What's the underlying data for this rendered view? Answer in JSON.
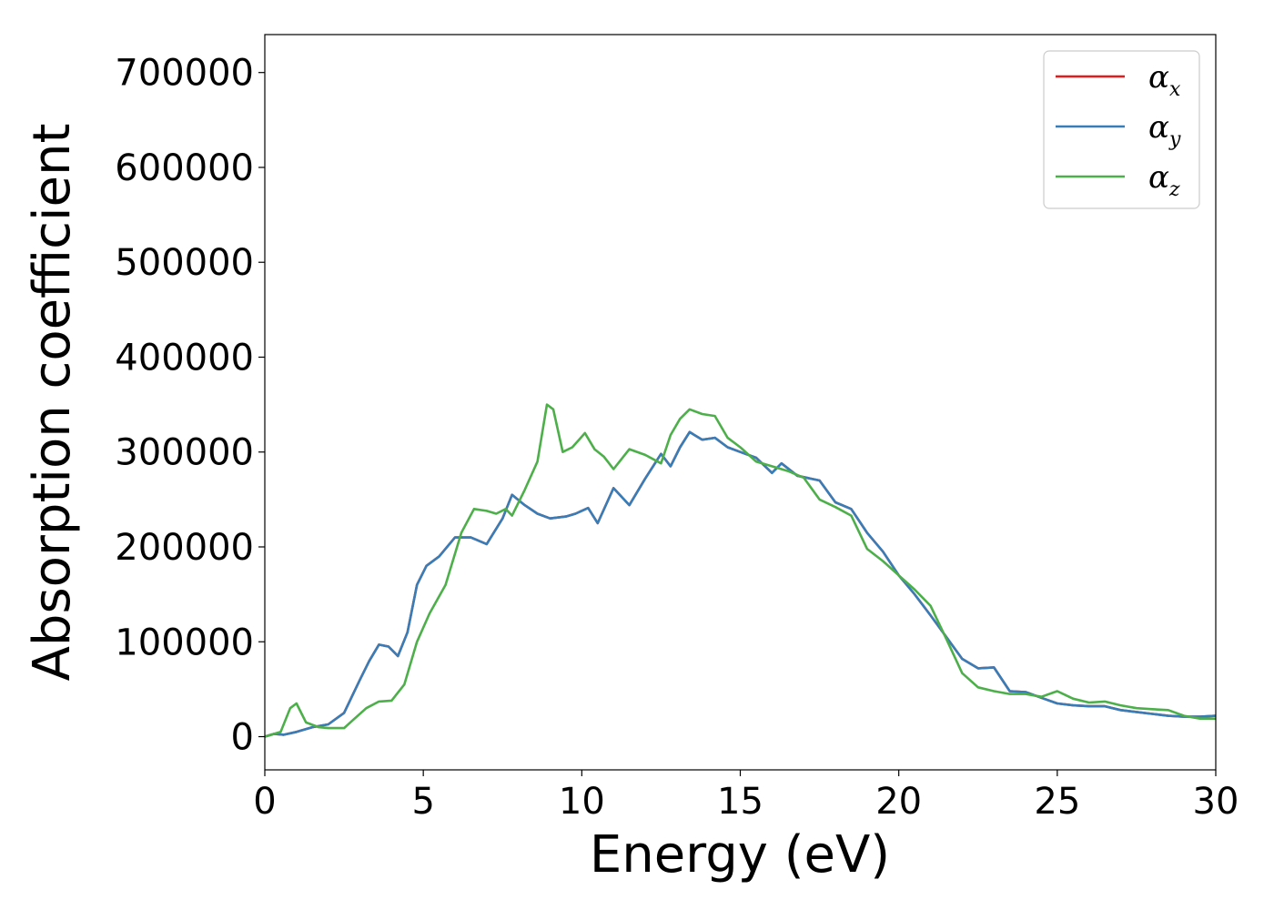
{
  "chart_data": {
    "type": "line",
    "xlabel": "Energy (eV)",
    "ylabel": "Absorption coefficient",
    "xlim": [
      0,
      30
    ],
    "ylim": [
      -35000,
      740000
    ],
    "xticks": [
      0,
      5,
      10,
      15,
      20,
      25,
      30
    ],
    "xtick_labels": [
      "0",
      "5",
      "10",
      "15",
      "20",
      "25",
      "30"
    ],
    "yticks": [
      0,
      100000,
      200000,
      300000,
      400000,
      500000,
      600000,
      700000
    ],
    "ytick_labels": [
      "0",
      "100000",
      "200000",
      "300000",
      "400000",
      "500000",
      "600000",
      "700000"
    ],
    "grid": false,
    "legend_position": "top-right",
    "series": [
      {
        "name": "αx",
        "symbol": "α",
        "subscript": "x",
        "color": "#e41a1c",
        "x": [
          0,
          0.3,
          0.6,
          1,
          1.5,
          2,
          2.5,
          3,
          3.3,
          3.6,
          3.9,
          4.2,
          4.5,
          4.8,
          5.1,
          5.5,
          6,
          6.5,
          7,
          7.5,
          7.8,
          8.2,
          8.6,
          9,
          9.5,
          9.8,
          10.2,
          10.5,
          11,
          11.5,
          12,
          12.5,
          12.8,
          13.1,
          13.4,
          13.8,
          14.2,
          14.6,
          15,
          15.5,
          16,
          16.3,
          16.8,
          17.5,
          18,
          18.5,
          19,
          19.5,
          20,
          20.5,
          21,
          21.5,
          22,
          22.5,
          23,
          23.5,
          24,
          24.5,
          25,
          25.5,
          26,
          26.5,
          27,
          27.5,
          28,
          28.5,
          29,
          29.5,
          30
        ],
        "y": [
          0,
          3000,
          2000,
          5000,
          10000,
          13000,
          25000,
          60000,
          80000,
          97000,
          95000,
          85000,
          110000,
          160000,
          180000,
          190000,
          210000,
          210000,
          203000,
          230000,
          255000,
          244000,
          235000,
          230000,
          232000,
          235000,
          241000,
          225000,
          262000,
          244000,
          272000,
          298000,
          285000,
          305000,
          321000,
          313000,
          315000,
          305000,
          300000,
          294000,
          278000,
          288000,
          275000,
          270000,
          247000,
          240000,
          215000,
          195000,
          170000,
          150000,
          128000,
          105000,
          82000,
          72000,
          73000,
          48000,
          47000,
          41000,
          35000,
          33000,
          32000,
          32000,
          28000,
          26000,
          24000,
          22000,
          21000,
          21000,
          22000
        ]
      },
      {
        "name": "αy",
        "symbol": "α",
        "subscript": "y",
        "color": "#377eb8",
        "x": [
          0,
          0.3,
          0.6,
          1,
          1.5,
          2,
          2.5,
          3,
          3.3,
          3.6,
          3.9,
          4.2,
          4.5,
          4.8,
          5.1,
          5.5,
          6,
          6.5,
          7,
          7.5,
          7.8,
          8.2,
          8.6,
          9,
          9.5,
          9.8,
          10.2,
          10.5,
          11,
          11.5,
          12,
          12.5,
          12.8,
          13.1,
          13.4,
          13.8,
          14.2,
          14.6,
          15,
          15.5,
          16,
          16.3,
          16.8,
          17.5,
          18,
          18.5,
          19,
          19.5,
          20,
          20.5,
          21,
          21.5,
          22,
          22.5,
          23,
          23.5,
          24,
          24.5,
          25,
          25.5,
          26,
          26.5,
          27,
          27.5,
          28,
          28.5,
          29,
          29.5,
          30
        ],
        "y": [
          0,
          3000,
          2000,
          5000,
          10000,
          13000,
          25000,
          60000,
          80000,
          97000,
          95000,
          85000,
          110000,
          160000,
          180000,
          190000,
          210000,
          210000,
          203000,
          230000,
          255000,
          244000,
          235000,
          230000,
          232000,
          235000,
          241000,
          225000,
          262000,
          244000,
          272000,
          298000,
          285000,
          305000,
          321000,
          313000,
          315000,
          305000,
          300000,
          294000,
          278000,
          288000,
          275000,
          270000,
          247000,
          240000,
          215000,
          195000,
          170000,
          150000,
          128000,
          105000,
          82000,
          72000,
          73000,
          48000,
          47000,
          41000,
          35000,
          33000,
          32000,
          32000,
          28000,
          26000,
          24000,
          22000,
          21000,
          21000,
          22000
        ]
      },
      {
        "name": "αz",
        "symbol": "α",
        "subscript": "z",
        "color": "#4daf4a",
        "x": [
          0,
          0.5,
          0.8,
          1,
          1.3,
          1.7,
          2,
          2.5,
          2.8,
          3.2,
          3.6,
          4,
          4.4,
          4.8,
          5.2,
          5.7,
          6.2,
          6.6,
          7,
          7.3,
          7.6,
          7.8,
          8.2,
          8.6,
          8.9,
          9.1,
          9.4,
          9.7,
          10.1,
          10.4,
          10.7,
          11,
          11.5,
          12,
          12.5,
          12.8,
          13.1,
          13.4,
          13.8,
          14.2,
          14.6,
          15,
          15.5,
          16,
          16.5,
          17,
          17.5,
          18,
          18.5,
          19,
          19.5,
          20,
          20.5,
          21,
          21.5,
          22,
          22.5,
          23,
          23.5,
          24,
          24.5,
          25,
          25.5,
          26,
          26.5,
          27,
          27.5,
          28,
          28.5,
          29,
          29.5,
          30
        ],
        "y": [
          0,
          5000,
          30000,
          35000,
          15000,
          10000,
          9000,
          9000,
          18000,
          30000,
          37000,
          38000,
          55000,
          100000,
          130000,
          160000,
          215000,
          240000,
          238000,
          235000,
          240000,
          233000,
          260000,
          290000,
          350000,
          345000,
          300000,
          305000,
          320000,
          303000,
          295000,
          282000,
          303000,
          297000,
          288000,
          318000,
          335000,
          345000,
          340000,
          338000,
          315000,
          305000,
          290000,
          285000,
          280000,
          273000,
          250000,
          242000,
          233000,
          198000,
          185000,
          170000,
          155000,
          138000,
          103000,
          67000,
          52000,
          48000,
          45000,
          45000,
          42000,
          48000,
          40000,
          36000,
          37000,
          33000,
          30000,
          29000,
          28000,
          22000,
          19000,
          19000
        ]
      }
    ]
  }
}
